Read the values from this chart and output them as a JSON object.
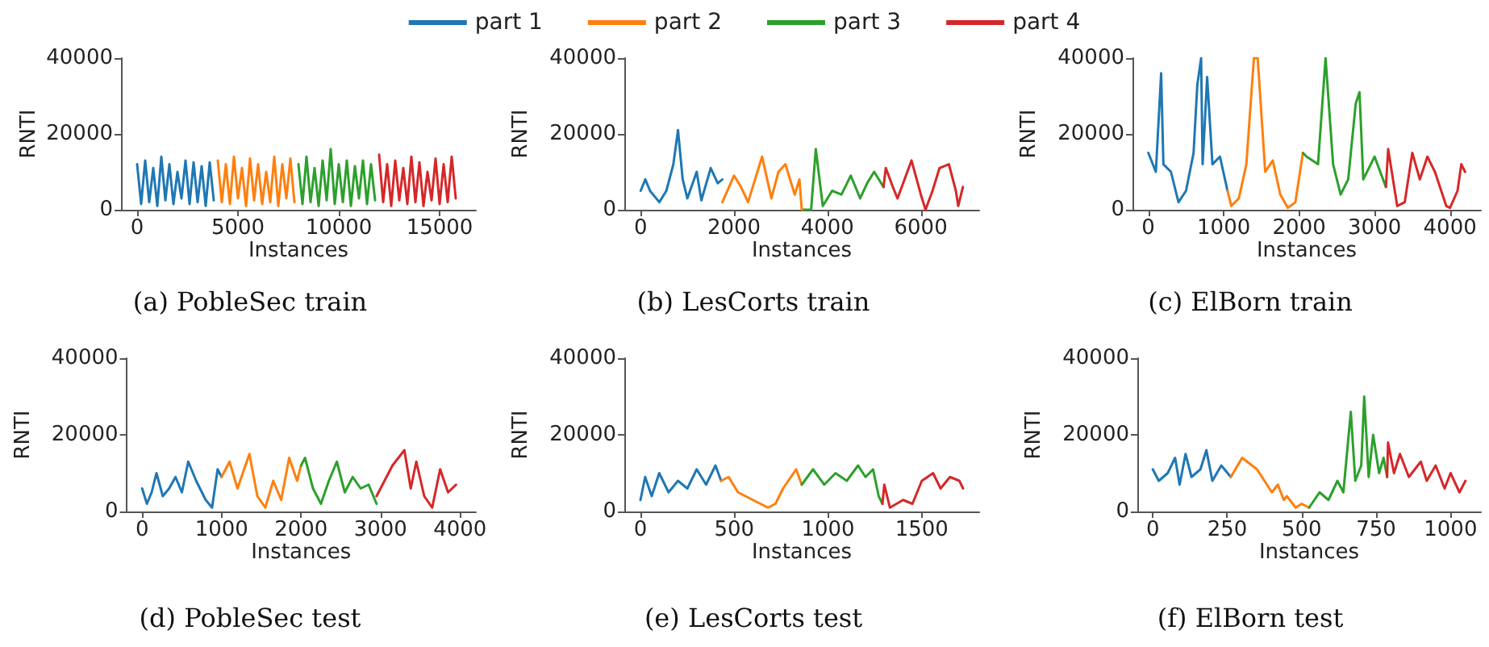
{
  "chart_data": [
    {
      "type": "line",
      "title": "(a) PobleSec train",
      "xlabel": "Instances",
      "ylabel": "RNTI",
      "legend": "top",
      "xlim": [
        -800,
        16800
      ],
      "xticks": [
        0,
        5000,
        10000,
        15000
      ],
      "ylim": [
        0,
        40000
      ],
      "yticks": [
        0,
        20000,
        40000
      ],
      "series": [
        {
          "name": "part 1",
          "color": "#1f77b4",
          "x": [
            0,
            200,
            400,
            600,
            800,
            1000,
            1200,
            1400,
            1600,
            1800,
            2000,
            2200,
            2400,
            2600,
            2800,
            3000,
            3200,
            3400,
            3600,
            3800
          ],
          "values": [
            12000,
            1500,
            13000,
            2000,
            11000,
            1000,
            14000,
            2500,
            12000,
            1500,
            10000,
            3000,
            13000,
            1500,
            12500,
            2000,
            11500,
            1000,
            12500,
            2500
          ]
        },
        {
          "name": "part 2",
          "color": "#ff7f0e",
          "x": [
            4000,
            4200,
            4400,
            4600,
            4800,
            5000,
            5200,
            5400,
            5600,
            5800,
            6000,
            6200,
            6400,
            6600,
            6800,
            7000,
            7200,
            7400,
            7600,
            7800
          ],
          "values": [
            13000,
            2000,
            12000,
            1500,
            14000,
            3000,
            11000,
            1000,
            13500,
            2500,
            12000,
            1500,
            10000,
            2000,
            14000,
            1000,
            12000,
            3000,
            13500,
            2000
          ]
        },
        {
          "name": "part 3",
          "color": "#2ca02c",
          "x": [
            8000,
            8200,
            8400,
            8600,
            8800,
            9000,
            9200,
            9400,
            9600,
            9800,
            10000,
            10200,
            10400,
            10600,
            10800,
            11000,
            11200,
            11400,
            11600,
            11800
          ],
          "values": [
            12000,
            1500,
            14000,
            2000,
            11000,
            1000,
            13000,
            2500,
            16000,
            1500,
            12000,
            2000,
            13000,
            1000,
            11500,
            3000,
            13000,
            1500,
            12000,
            2500
          ]
        },
        {
          "name": "part 4",
          "color": "#d62728",
          "x": [
            12000,
            12200,
            12400,
            12600,
            12800,
            13000,
            13200,
            13400,
            13600,
            13800,
            14000,
            14200,
            14400,
            14600,
            14800,
            15000,
            15200,
            15400,
            15600,
            15800
          ],
          "values": [
            14500,
            2000,
            12000,
            1000,
            13000,
            2500,
            11000,
            1500,
            14000,
            2000,
            12500,
            1000,
            10000,
            2500,
            13500,
            1500,
            12000,
            2000,
            14000,
            3000
          ]
        }
      ]
    },
    {
      "type": "line",
      "title": "(b) LesCorts train",
      "xlabel": "Instances",
      "ylabel": "RNTI",
      "xlim": [
        -350,
        7250
      ],
      "xticks": [
        0,
        2000,
        4000,
        6000
      ],
      "ylim": [
        0,
        40000
      ],
      "yticks": [
        0,
        20000,
        40000
      ],
      "series": [
        {
          "color": "#1f77b4",
          "x": [
            0,
            100,
            200,
            400,
            550,
            700,
            800,
            900,
            1000,
            1200,
            1300,
            1500,
            1650,
            1750
          ],
          "values": [
            5000,
            8000,
            5000,
            2000,
            5000,
            12000,
            21000,
            8000,
            3000,
            10000,
            2500,
            11000,
            7000,
            8000
          ]
        },
        {
          "color": "#ff7f0e",
          "x": [
            1750,
            2000,
            2150,
            2300,
            2450,
            2600,
            2800,
            2950,
            3100,
            3300,
            3400,
            3450,
            3500
          ],
          "values": [
            2000,
            9000,
            6000,
            2000,
            8000,
            14000,
            3000,
            10000,
            12000,
            4000,
            8000,
            0,
            0
          ]
        },
        {
          "color": "#2ca02c",
          "x": [
            3500,
            3650,
            3750,
            3900,
            4100,
            4300,
            4500,
            4700,
            4850,
            5000,
            5200
          ],
          "values": [
            0,
            0,
            16000,
            1000,
            5000,
            4000,
            9000,
            3000,
            7000,
            10000,
            6000
          ]
        },
        {
          "color": "#d62728",
          "x": [
            5200,
            5250,
            5400,
            5500,
            5650,
            5800,
            6000,
            6100,
            6250,
            6400,
            6600,
            6750,
            6800,
            6900
          ],
          "values": [
            6000,
            11000,
            6000,
            3000,
            8000,
            13000,
            4000,
            0,
            5000,
            11000,
            12000,
            5000,
            1000,
            6000
          ]
        }
      ]
    },
    {
      "type": "line",
      "title": "(c) ElBorn train",
      "xlabel": "Instances",
      "ylabel": "RNTI",
      "xlim": [
        -210,
        4410
      ],
      "xticks": [
        0,
        1000,
        2000,
        3000,
        4000
      ],
      "ylim": [
        0,
        40000
      ],
      "yticks": [
        0,
        20000,
        40000
      ],
      "series": [
        {
          "color": "#1f77b4",
          "x": [
            0,
            100,
            170,
            200,
            300,
            400,
            500,
            600,
            650,
            700,
            720,
            780,
            850,
            950,
            1050
          ],
          "values": [
            15000,
            10000,
            36000,
            12000,
            10000,
            2000,
            5000,
            15000,
            33000,
            40000,
            12000,
            35000,
            12000,
            14000,
            5000
          ]
        },
        {
          "color": "#ff7f0e",
          "x": [
            1050,
            1100,
            1200,
            1300,
            1400,
            1450,
            1550,
            1650,
            1750,
            1850,
            1950,
            2050
          ],
          "values": [
            5000,
            1000,
            3000,
            12000,
            40000,
            40000,
            10000,
            13000,
            4000,
            500,
            2000,
            15000
          ]
        },
        {
          "color": "#2ca02c",
          "x": [
            2050,
            2100,
            2250,
            2350,
            2450,
            2550,
            2650,
            2750,
            2800,
            2850,
            3000,
            3150
          ],
          "values": [
            15000,
            14000,
            12000,
            40000,
            12000,
            4000,
            8000,
            28000,
            31000,
            8000,
            14000,
            6000
          ]
        },
        {
          "color": "#d62728",
          "x": [
            3150,
            3180,
            3300,
            3400,
            3500,
            3600,
            3700,
            3800,
            3950,
            4000,
            4100,
            4150,
            4200
          ],
          "values": [
            6000,
            16000,
            1000,
            2000,
            15000,
            8000,
            14000,
            10000,
            1000,
            500,
            5000,
            12000,
            10000
          ]
        }
      ]
    },
    {
      "type": "line",
      "title": "(d) PobleSec test",
      "xlabel": "Instances",
      "ylabel": "RNTI",
      "xlim": [
        -200,
        4200
      ],
      "xticks": [
        0,
        1000,
        2000,
        3000,
        4000
      ],
      "ylim": [
        0,
        40000
      ],
      "yticks": [
        0,
        20000,
        40000
      ],
      "series": [
        {
          "color": "#1f77b4",
          "x": [
            0,
            60,
            120,
            180,
            260,
            340,
            420,
            500,
            580,
            680,
            800,
            880,
            950,
            1000
          ],
          "values": [
            6000,
            2000,
            5000,
            10000,
            4000,
            6000,
            9000,
            5000,
            13000,
            8000,
            3000,
            1000,
            11000,
            9000
          ]
        },
        {
          "color": "#ff7f0e",
          "x": [
            1000,
            1100,
            1200,
            1350,
            1450,
            1550,
            1650,
            1750,
            1850,
            1950,
            2000
          ],
          "values": [
            9000,
            13000,
            6000,
            15000,
            4000,
            1000,
            8000,
            3000,
            14000,
            8000,
            12000
          ]
        },
        {
          "color": "#2ca02c",
          "x": [
            2000,
            2050,
            2150,
            2250,
            2350,
            2450,
            2550,
            2650,
            2750,
            2850,
            2950
          ],
          "values": [
            12000,
            14000,
            6000,
            2000,
            8000,
            13000,
            5000,
            9000,
            6000,
            7000,
            2000
          ]
        },
        {
          "color": "#d62728",
          "x": [
            2950,
            3050,
            3150,
            3300,
            3380,
            3450,
            3550,
            3650,
            3700,
            3750,
            3850,
            3950
          ],
          "values": [
            4000,
            8000,
            12000,
            16000,
            6000,
            13000,
            4000,
            1000,
            6000,
            11000,
            5000,
            7000
          ]
        }
      ]
    },
    {
      "type": "line",
      "title": "(e) LesCorts test",
      "xlabel": "Instances",
      "ylabel": "RNTI",
      "xlim": [
        -86,
        1806
      ],
      "xticks": [
        0,
        500,
        1000,
        1500
      ],
      "ylim": [
        0,
        40000
      ],
      "yticks": [
        0,
        20000,
        40000
      ],
      "series": [
        {
          "color": "#1f77b4",
          "x": [
            0,
            25,
            60,
            100,
            150,
            200,
            250,
            300,
            350,
            400,
            430
          ],
          "values": [
            3000,
            9000,
            4000,
            10000,
            5000,
            8000,
            6000,
            11000,
            7000,
            12000,
            8000
          ]
        },
        {
          "color": "#ff7f0e",
          "x": [
            430,
            470,
            520,
            600,
            680,
            720,
            760,
            830,
            860
          ],
          "values": [
            8000,
            9000,
            5000,
            3000,
            1000,
            2000,
            6000,
            11000,
            7000
          ]
        },
        {
          "color": "#2ca02c",
          "x": [
            860,
            920,
            980,
            1040,
            1100,
            1160,
            1200,
            1240,
            1270,
            1290
          ],
          "values": [
            7000,
            11000,
            7000,
            10000,
            8000,
            12000,
            9000,
            11000,
            4000,
            2000
          ]
        },
        {
          "color": "#d62728",
          "x": [
            1290,
            1300,
            1330,
            1400,
            1450,
            1500,
            1560,
            1600,
            1650,
            1700,
            1720
          ],
          "values": [
            2000,
            7000,
            1000,
            3000,
            2000,
            8000,
            10000,
            6000,
            9000,
            8000,
            6000
          ]
        }
      ]
    },
    {
      "type": "line",
      "title": "(f) ElBorn test",
      "xlabel": "Instances",
      "ylabel": "RNTI",
      "xlim": [
        -52,
        1102
      ],
      "xticks": [
        0,
        250,
        500,
        750,
        1000
      ],
      "ylim": [
        0,
        40000
      ],
      "yticks": [
        0,
        20000,
        40000
      ],
      "series": [
        {
          "color": "#1f77b4",
          "x": [
            0,
            20,
            50,
            75,
            90,
            110,
            130,
            160,
            180,
            200,
            230,
            262
          ],
          "values": [
            11000,
            8000,
            10000,
            14000,
            7000,
            15000,
            9000,
            11000,
            16000,
            8000,
            12000,
            9000
          ]
        },
        {
          "color": "#ff7f0e",
          "x": [
            262,
            300,
            350,
            400,
            420,
            440,
            450,
            480,
            500,
            525
          ],
          "values": [
            9000,
            14000,
            11000,
            5000,
            7000,
            3000,
            4000,
            1000,
            2000,
            1000
          ]
        },
        {
          "color": "#2ca02c",
          "x": [
            525,
            560,
            590,
            620,
            640,
            665,
            680,
            700,
            710,
            725,
            740,
            760,
            775,
            787
          ],
          "values": [
            1000,
            5000,
            3000,
            8000,
            5000,
            26000,
            8000,
            12000,
            30000,
            9000,
            20000,
            10000,
            14000,
            9000
          ]
        },
        {
          "color": "#d62728",
          "x": [
            787,
            790,
            810,
            830,
            860,
            900,
            920,
            950,
            980,
            1000,
            1030,
            1050
          ],
          "values": [
            9000,
            18000,
            10000,
            15000,
            9000,
            13000,
            8000,
            12000,
            6000,
            10000,
            5000,
            8000
          ]
        }
      ]
    }
  ]
}
